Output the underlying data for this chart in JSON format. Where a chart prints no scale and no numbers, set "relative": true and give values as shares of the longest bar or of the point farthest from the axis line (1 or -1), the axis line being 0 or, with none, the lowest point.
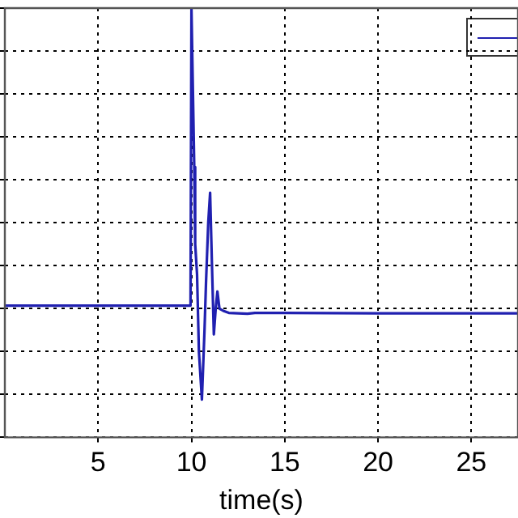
{
  "chart_data": {
    "type": "line",
    "xlabel": "time(s)",
    "relative": true,
    "xlim": [
      0,
      27.5
    ],
    "xticks": [
      5,
      10,
      15,
      20,
      25
    ],
    "grid": true,
    "marker": "none",
    "line_style": "solid",
    "series": [
      {
        "color": "#2020b0",
        "x": [
          0,
          9.95,
          10.0,
          10.15,
          10.2,
          10.3,
          10.4,
          10.56,
          10.7,
          10.78,
          10.9,
          11.0,
          11.1,
          11.2,
          11.3,
          11.39,
          11.5,
          11.7,
          12.0,
          13.0,
          13.4,
          15,
          20,
          27.5
        ],
        "values": [
          0.307,
          0.307,
          1.0,
          0.63,
          0.45,
          0.38,
          0.2,
          0.088,
          0.25,
          0.36,
          0.5,
          0.57,
          0.4,
          0.24,
          0.3,
          0.34,
          0.3,
          0.295,
          0.29,
          0.288,
          0.29,
          0.29,
          0.289,
          0.289
        ]
      }
    ]
  }
}
